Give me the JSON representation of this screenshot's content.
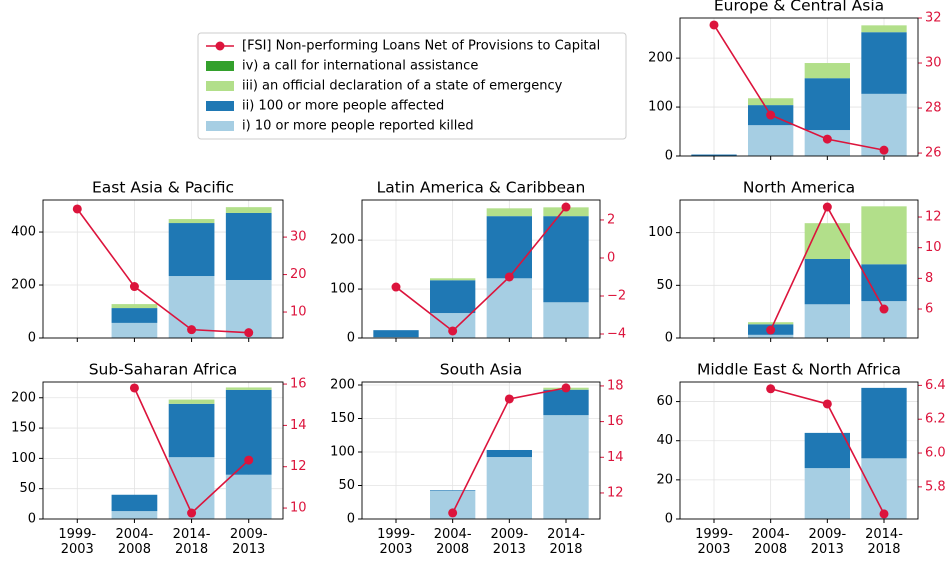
{
  "chart_data": [
    {
      "type": "bar",
      "title": "Europe & Central Asia",
      "categories": [
        "1999-\n2003",
        "2004-\n2008",
        "2009-\n2013",
        "2014-\n2018"
      ],
      "series": [
        {
          "name": "i) 10 or more people reported killed",
          "color": "#a6cee3",
          "values": [
            0,
            63,
            53,
            127
          ]
        },
        {
          "name": "ii) 100 or more people affected",
          "color": "#1f78b4",
          "values": [
            3,
            41,
            106,
            126
          ]
        },
        {
          "name": "iii) an official declaration of a state of emergency",
          "color": "#b2df8a",
          "values": [
            0,
            14,
            31,
            14
          ]
        },
        {
          "name": "iv) a call for international assistance",
          "color": "#33a02c",
          "values": [
            0,
            0,
            0,
            0
          ]
        },
        {
          "name": "[FSI] Non-performing Loans Net of Provisions to Capital",
          "color": "#dc143c",
          "type": "line",
          "axis": "y2",
          "values": [
            31.69,
            27.69,
            26.62,
            26.13
          ]
        }
      ],
      "ylim": [
        0,
        282
      ],
      "yticks": [
        0,
        100,
        200
      ],
      "y2lim": [
        25.87,
        32.0
      ],
      "y2ticks": [
        26,
        28,
        30,
        32
      ],
      "grid": true
    },
    {
      "type": "bar",
      "title": "East Asia & Pacific",
      "categories": [
        "1999-\n2003",
        "2004-\n2008",
        "2014-\n2018",
        "2009-\n2013"
      ],
      "series": [
        {
          "name": "i) 10 or more people reported killed",
          "color": "#a6cee3",
          "values": [
            0,
            57,
            234,
            219
          ]
        },
        {
          "name": "ii) 100 or more people affected",
          "color": "#1f78b4",
          "values": [
            0,
            56,
            200,
            253
          ]
        },
        {
          "name": "iii) an official declaration of a state of emergency",
          "color": "#b2df8a",
          "values": [
            0,
            15,
            15,
            22
          ]
        },
        {
          "name": "iv) a call for international assistance",
          "color": "#33a02c",
          "values": [
            0,
            0,
            0,
            0
          ]
        },
        {
          "name": "[FSI] Non-performing Loans Net of Provisions to Capital",
          "color": "#dc143c",
          "type": "line",
          "axis": "y2",
          "values": [
            37.5,
            16.8,
            5.3,
            4.5
          ]
        }
      ],
      "ylim": [
        0,
        521
      ],
      "yticks": [
        0,
        200,
        400
      ],
      "y2lim": [
        3.07,
        39.9
      ],
      "y2ticks": [
        10,
        20,
        30
      ],
      "grid": true
    },
    {
      "type": "bar",
      "title": "Latin America & Caribbean",
      "categories": [
        "1999-\n2003",
        "2004-\n2008",
        "2009-\n2013",
        "2014-\n2018"
      ],
      "series": [
        {
          "name": "i) 10 or more people reported killed",
          "color": "#a6cee3",
          "values": [
            2,
            51,
            122,
            73
          ]
        },
        {
          "name": "ii) 100 or more people affected",
          "color": "#1f78b4",
          "values": [
            14,
            67,
            127,
            176
          ]
        },
        {
          "name": "iii) an official declaration of a state of emergency",
          "color": "#b2df8a",
          "values": [
            0,
            4,
            16,
            18
          ]
        },
        {
          "name": "iv) a call for international assistance",
          "color": "#33a02c",
          "values": [
            0,
            0,
            0,
            0
          ]
        },
        {
          "name": "[FSI] Non-performing Loans Net of Provisions to Capital",
          "color": "#dc143c",
          "type": "line",
          "axis": "y2",
          "values": [
            -1.53,
            -3.84,
            -1.0,
            2.68
          ]
        }
      ],
      "ylim": [
        0,
        282
      ],
      "yticks": [
        0,
        100,
        200
      ],
      "y2lim": [
        -4.21,
        3.05
      ],
      "y2ticks": [
        {
          "value": -4,
          "label": "−4"
        },
        {
          "value": -2,
          "label": "−2"
        },
        0,
        2
      ],
      "grid": true
    },
    {
      "type": "bar",
      "title": "North America",
      "categories": [
        "1999-\n2003",
        "2004-\n2008",
        "2009-\n2013",
        "2014-\n2018"
      ],
      "series": [
        {
          "name": "i) 10 or more people reported killed",
          "color": "#a6cee3",
          "values": [
            0,
            3,
            32,
            35
          ]
        },
        {
          "name": "ii) 100 or more people affected",
          "color": "#1f78b4",
          "values": [
            0,
            10,
            43,
            35
          ]
        },
        {
          "name": "iii) an official declaration of a state of emergency",
          "color": "#b2df8a",
          "values": [
            0,
            2,
            34,
            55
          ]
        },
        {
          "name": "iv) a call for international assistance",
          "color": "#33a02c",
          "values": [
            0,
            0,
            0,
            0
          ]
        },
        {
          "name": "[FSI] Non-performing Loans Net of Provisions to Capital",
          "color": "#dc143c",
          "type": "line",
          "axis": "y2",
          "values": [
            null,
            4.63,
            12.65,
            6.0
          ]
        }
      ],
      "ylim": [
        0,
        131
      ],
      "yticks": [
        0,
        50,
        100
      ],
      "y2lim": [
        4.11,
        13.11
      ],
      "y2ticks": [
        6,
        8,
        10,
        12
      ],
      "grid": true
    },
    {
      "type": "bar",
      "title": "Sub-Saharan Africa",
      "categories": [
        "1999-\n2003",
        "2004-\n2008",
        "2014-\n2018",
        "2009-\n2013"
      ],
      "series": [
        {
          "name": "i) 10 or more people reported killed",
          "color": "#a6cee3",
          "values": [
            0,
            13,
            102,
            73
          ]
        },
        {
          "name": "ii) 100 or more people affected",
          "color": "#1f78b4",
          "values": [
            0,
            27,
            88,
            140
          ]
        },
        {
          "name": "iii) an official declaration of a state of emergency",
          "color": "#b2df8a",
          "values": [
            0,
            0,
            7,
            4
          ]
        },
        {
          "name": "iv) a call for international assistance",
          "color": "#33a02c",
          "values": [
            0,
            0,
            0,
            0
          ]
        },
        {
          "name": "[FSI] Non-performing Loans Net of Provisions to Capital",
          "color": "#dc143c",
          "type": "line",
          "axis": "y2",
          "values": [
            null,
            15.81,
            9.76,
            12.32
          ]
        }
      ],
      "ylim": [
        0,
        226
      ],
      "yticks": [
        0,
        50,
        100,
        150,
        200
      ],
      "y2lim": [
        9.47,
        16.1
      ],
      "y2ticks": [
        10,
        12,
        14,
        16
      ],
      "grid": true
    },
    {
      "type": "bar",
      "title": "South Asia",
      "categories": [
        "1999-\n2003",
        "2004-\n2008",
        "2009-\n2013",
        "2014-\n2018"
      ],
      "series": [
        {
          "name": "i) 10 or more people reported killed",
          "color": "#a6cee3",
          "values": [
            0,
            42,
            92.5,
            155
          ]
        },
        {
          "name": "ii) 100 or more people affected",
          "color": "#1f78b4",
          "values": [
            0,
            1,
            10.5,
            38
          ]
        },
        {
          "name": "iii) an official declaration of a state of emergency",
          "color": "#b2df8a",
          "values": [
            0,
            0,
            0,
            3
          ]
        },
        {
          "name": "iv) a call for international assistance",
          "color": "#33a02c",
          "values": [
            0,
            0,
            0,
            0
          ]
        },
        {
          "name": "[FSI] Non-performing Loans Net of Provisions to Capital",
          "color": "#dc143c",
          "type": "line",
          "axis": "y2",
          "values": [
            null,
            10.88,
            17.27,
            17.89
          ]
        }
      ],
      "ylim": [
        0,
        204.5
      ],
      "yticks": [
        0,
        50,
        100,
        150,
        200
      ],
      "y2lim": [
        10.54,
        18.22
      ],
      "y2ticks": [
        12,
        14,
        16,
        18
      ],
      "grid": true
    },
    {
      "type": "bar",
      "title": "Middle East & North Africa",
      "categories": [
        "1999-\n2003",
        "2004-\n2008",
        "2009-\n2013",
        "2014-\n2018"
      ],
      "series": [
        {
          "name": "i) 10 or more people reported killed",
          "color": "#a6cee3",
          "values": [
            0,
            0,
            26,
            31
          ]
        },
        {
          "name": "ii) 100 or more people affected",
          "color": "#1f78b4",
          "values": [
            0,
            0,
            18,
            36
          ]
        },
        {
          "name": "iii) an official declaration of a state of emergency",
          "color": "#b2df8a",
          "values": [
            0,
            0,
            0,
            0
          ]
        },
        {
          "name": "iv) a call for international assistance",
          "color": "#33a02c",
          "values": [
            0,
            0,
            0,
            0
          ]
        },
        {
          "name": "[FSI] Non-performing Loans Net of Provisions to Capital",
          "color": "#dc143c",
          "type": "line",
          "axis": "y2",
          "values": [
            null,
            6.38,
            6.29,
            5.64
          ]
        }
      ],
      "ylim": [
        0,
        70
      ],
      "yticks": [
        0,
        20,
        40,
        60
      ],
      "y2lim": [
        5.61,
        6.42
      ],
      "y2ticks": [
        5.8,
        {
          "value": 6.0,
          "label": "6.0"
        },
        6.2,
        6.4
      ],
      "grid": true
    }
  ]
}
